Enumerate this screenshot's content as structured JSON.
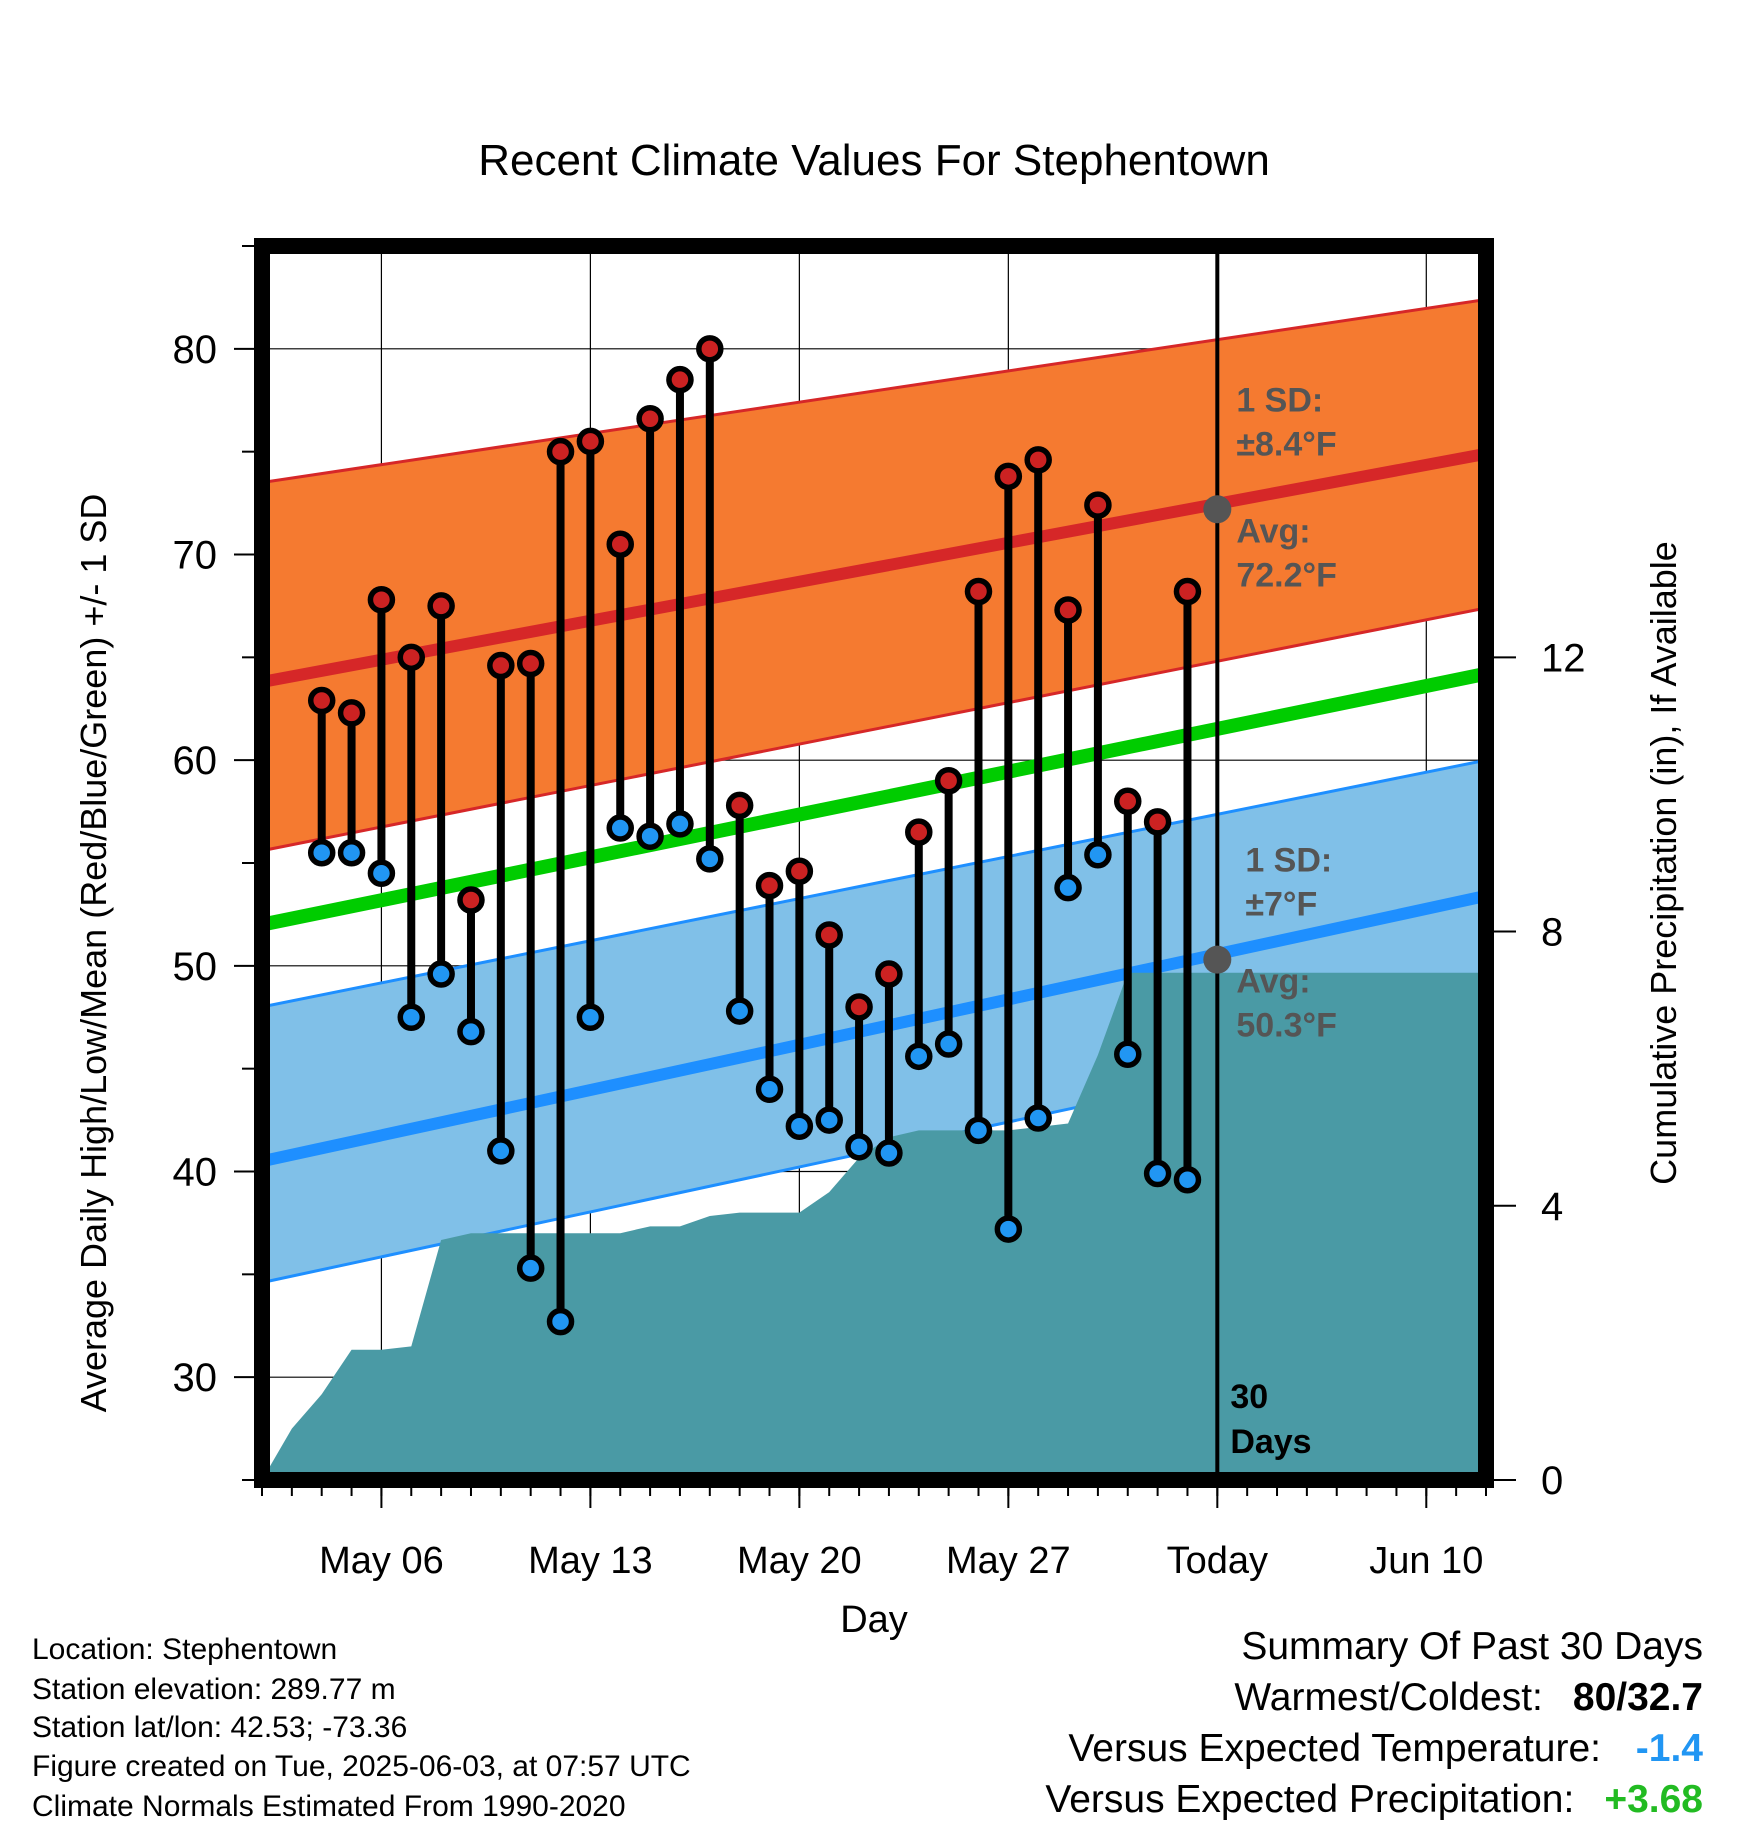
{
  "chart_data": {
    "type": "line",
    "title": "Recent Climate Values For Stephentown",
    "xlabel": "Day",
    "ylabel": "Average Daily High/Low/Mean (Red/Blue/Green) +/- 1 SD",
    "y2label": "Cumulative Precipitation (in), If Available",
    "ylim": [
      25,
      85
    ],
    "y2lim": [
      0,
      18
    ],
    "x_tick_labels": [
      "May 06",
      "May 13",
      "May 20",
      "May 27",
      "Today",
      "Jun 10"
    ],
    "x_tick_days": [
      "2025-05-06",
      "2025-05-13",
      "2025-05-20",
      "2025-05-27",
      "2025-06-03",
      "2025-06-10"
    ],
    "y_ticks": [
      30,
      40,
      50,
      60,
      70,
      80
    ],
    "y2_ticks": [
      0,
      4,
      8,
      12
    ],
    "grid": true,
    "x_range": [
      "2025-05-02",
      "2025-06-12"
    ],
    "dates": [
      "2025-05-04",
      "2025-05-05",
      "2025-05-06",
      "2025-05-07",
      "2025-05-08",
      "2025-05-09",
      "2025-05-10",
      "2025-05-11",
      "2025-05-12",
      "2025-05-13",
      "2025-05-14",
      "2025-05-15",
      "2025-05-16",
      "2025-05-17",
      "2025-05-18",
      "2025-05-19",
      "2025-05-20",
      "2025-05-21",
      "2025-05-22",
      "2025-05-23",
      "2025-05-24",
      "2025-05-25",
      "2025-05-26",
      "2025-05-27",
      "2025-05-28",
      "2025-05-29",
      "2025-05-30",
      "2025-05-31",
      "2025-06-01",
      "2025-06-02"
    ],
    "daily_high": [
      62.9,
      62.3,
      67.8,
      65.0,
      67.5,
      53.2,
      64.6,
      64.7,
      75.0,
      75.5,
      70.5,
      76.6,
      78.5,
      80.0,
      57.8,
      53.9,
      54.6,
      51.5,
      48.0,
      49.6,
      56.5,
      59.0,
      68.2,
      73.8,
      74.6,
      67.3,
      72.4,
      58.0,
      57.0,
      68.2
    ],
    "daily_low": [
      55.5,
      55.5,
      54.5,
      47.5,
      49.6,
      46.8,
      41.0,
      35.3,
      32.7,
      47.5,
      56.7,
      56.3,
      56.9,
      55.2,
      47.8,
      44.0,
      42.2,
      42.5,
      41.2,
      40.9,
      45.6,
      46.2,
      42.0,
      37.2,
      42.6,
      53.8,
      55.4,
      45.7,
      39.9,
      39.6
    ],
    "normals": {
      "days": [
        "2025-05-02",
        "2025-06-12"
      ],
      "avg_high": [
        63.8,
        74.9
      ],
      "high_sd_upper": [
        73.5,
        82.4
      ],
      "high_sd_lower": [
        55.6,
        67.4
      ],
      "avg_low": [
        40.5,
        53.4
      ],
      "low_sd_upper": [
        48.0,
        60.0
      ],
      "low_sd_lower": [
        34.6,
        47.4
      ],
      "avg_mean": [
        52.0,
        64.2
      ]
    },
    "cumulative_precip": {
      "days": [
        "2025-05-02",
        "2025-05-03",
        "2025-05-04",
        "2025-05-05",
        "2025-05-06",
        "2025-05-07",
        "2025-05-08",
        "2025-05-09",
        "2025-05-10",
        "2025-05-11",
        "2025-05-12",
        "2025-05-13",
        "2025-05-14",
        "2025-05-15",
        "2025-05-16",
        "2025-05-17",
        "2025-05-18",
        "2025-05-19",
        "2025-05-20",
        "2025-05-21",
        "2025-05-22",
        "2025-05-23",
        "2025-05-24",
        "2025-05-25",
        "2025-05-26",
        "2025-05-27",
        "2025-05-28",
        "2025-05-29",
        "2025-05-30",
        "2025-05-31",
        "2025-06-01",
        "2025-06-02",
        "2025-06-03",
        "2025-06-12"
      ],
      "values": [
        0.0,
        0.75,
        1.25,
        1.9,
        1.9,
        1.95,
        3.5,
        3.6,
        3.6,
        3.6,
        3.6,
        3.6,
        3.6,
        3.7,
        3.7,
        3.85,
        3.9,
        3.9,
        3.9,
        4.2,
        4.7,
        5.0,
        5.1,
        5.1,
        5.1,
        5.1,
        5.15,
        5.2,
        6.2,
        7.4,
        7.4,
        7.4,
        7.4,
        7.4
      ]
    },
    "annotations": {
      "high_sd_label": [
        "1 SD:",
        "±8.4°F"
      ],
      "high_avg_label": [
        "Avg:",
        "72.2°F"
      ],
      "low_sd_label": [
        "1 SD:",
        "±7°F"
      ],
      "low_avg_label": [
        "Avg:",
        "50.3°F"
      ],
      "today_high_avg": 72.2,
      "today_low_avg": 50.3,
      "days_label": [
        "30",
        "Days"
      ]
    },
    "colors": {
      "high_band": "#f57a30",
      "high_line": "#d62728",
      "low_band": "#80c0e8",
      "low_line": "#1e8fff",
      "mean_line": "#00cc00",
      "precip": "#4a9aa5",
      "high_marker": "#cc2222",
      "low_marker": "#2196f3",
      "today_marker": "#555555",
      "label": "#555555"
    }
  },
  "info": {
    "location": "Location: Stephentown",
    "elevation": "Station elevation: 289.77 m",
    "latlon": "Station lat/lon: 42.53; -73.36",
    "created": "Figure created on Tue, 2025-06-03, at 07:57 UTC",
    "normals": "Climate Normals Estimated From 1990-2020"
  },
  "summary": {
    "title": "Summary Of Past 30 Days",
    "warmest_label": "Warmest/Coldest:",
    "warmest_value": "80/32.7",
    "temp_label": "Versus Expected Temperature:",
    "temp_value": "-1.4",
    "temp_color": "#2196f3",
    "precip_label": "Versus Expected Precipitation:",
    "precip_value": "+3.68",
    "precip_color": "#22bb22"
  }
}
